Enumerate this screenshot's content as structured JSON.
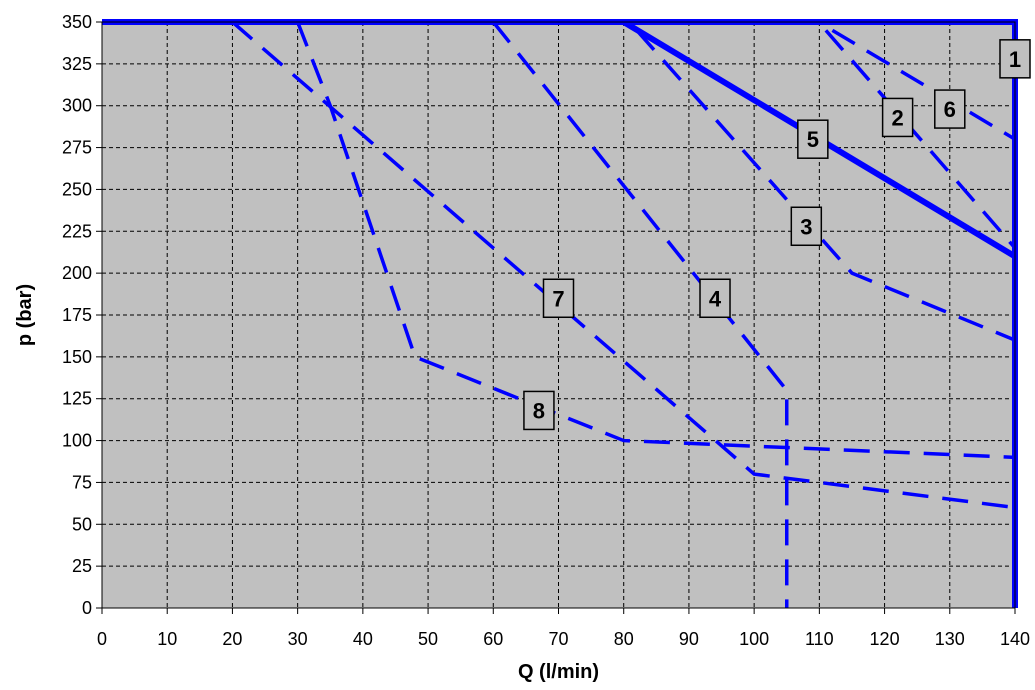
{
  "chart_data": {
    "type": "line",
    "title": "",
    "xlabel": "Q (l/min)",
    "ylabel": "p (bar)",
    "xlim": [
      0,
      140
    ],
    "ylim": [
      0,
      350
    ],
    "xticks": [
      0,
      10,
      20,
      30,
      40,
      50,
      60,
      70,
      80,
      90,
      100,
      110,
      120,
      130,
      140
    ],
    "yticks": [
      0,
      25,
      50,
      75,
      100,
      125,
      150,
      175,
      200,
      225,
      250,
      275,
      300,
      325,
      350
    ],
    "grid": true,
    "legend": "none",
    "plot_background": "#c0c0c0",
    "line_color": "#0000ff",
    "series": [
      {
        "label": "1",
        "style": "solid",
        "width": "thick",
        "points": [
          [
            0,
            350
          ],
          [
            140,
            350
          ],
          [
            140,
            0
          ]
        ],
        "label_pos": [
          140,
          328
        ]
      },
      {
        "label": "2",
        "style": "dashed",
        "points": [
          [
            111,
            345
          ],
          [
            140,
            215
          ]
        ],
        "label_pos": [
          122,
          293
        ]
      },
      {
        "label": "3",
        "style": "dashed",
        "points": [
          [
            82,
            345
          ],
          [
            115,
            200
          ],
          [
            140,
            160
          ]
        ],
        "label_pos": [
          108,
          228
        ]
      },
      {
        "label": "4",
        "style": "dashed",
        "points": [
          [
            60,
            350
          ],
          [
            105,
            130
          ],
          [
            105,
            0
          ]
        ],
        "label_pos": [
          94,
          185
        ]
      },
      {
        "label": "5",
        "style": "solid",
        "width": "thick",
        "points": [
          [
            80,
            350
          ],
          [
            140,
            210
          ]
        ],
        "label_pos": [
          109,
          280
        ]
      },
      {
        "label": "6",
        "style": "dashed",
        "points": [
          [
            112,
            345
          ],
          [
            140,
            280
          ]
        ],
        "label_pos": [
          130,
          298
        ]
      },
      {
        "label": "7",
        "style": "dashed",
        "points": [
          [
            20,
            350
          ],
          [
            100,
            80
          ],
          [
            140,
            60
          ]
        ],
        "label_pos": [
          70,
          185
        ]
      },
      {
        "label": "8",
        "style": "dashed",
        "points": [
          [
            30,
            350
          ],
          [
            35,
            300
          ],
          [
            48,
            150
          ],
          [
            80,
            100
          ],
          [
            140,
            90
          ]
        ],
        "label_pos": [
          67,
          118
        ]
      }
    ]
  }
}
